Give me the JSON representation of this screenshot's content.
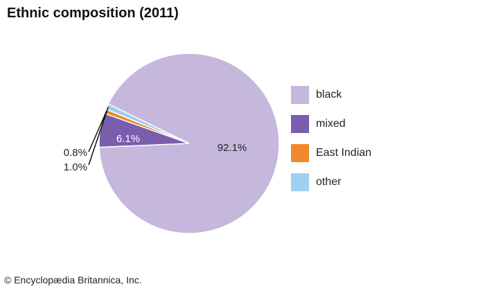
{
  "title": "Ethnic composition (2011)",
  "footer": "© Encyclopædia Britannica, Inc.",
  "chart_data": {
    "type": "pie",
    "title": "Ethnic composition (2011)",
    "slices": [
      {
        "label": "black",
        "value": 92.1,
        "value_label": "92.1%",
        "color": "#c5b8dc"
      },
      {
        "label": "mixed",
        "value": 6.1,
        "value_label": "6.1%",
        "color": "#7a5ead"
      },
      {
        "label": "East Indian",
        "value": 0.8,
        "value_label": "0.8%",
        "color": "#f0892a"
      },
      {
        "label": "other",
        "value": 1.0,
        "value_label": "1.0%",
        "color": "#9fd0ef"
      }
    ],
    "legend_position": "right"
  }
}
